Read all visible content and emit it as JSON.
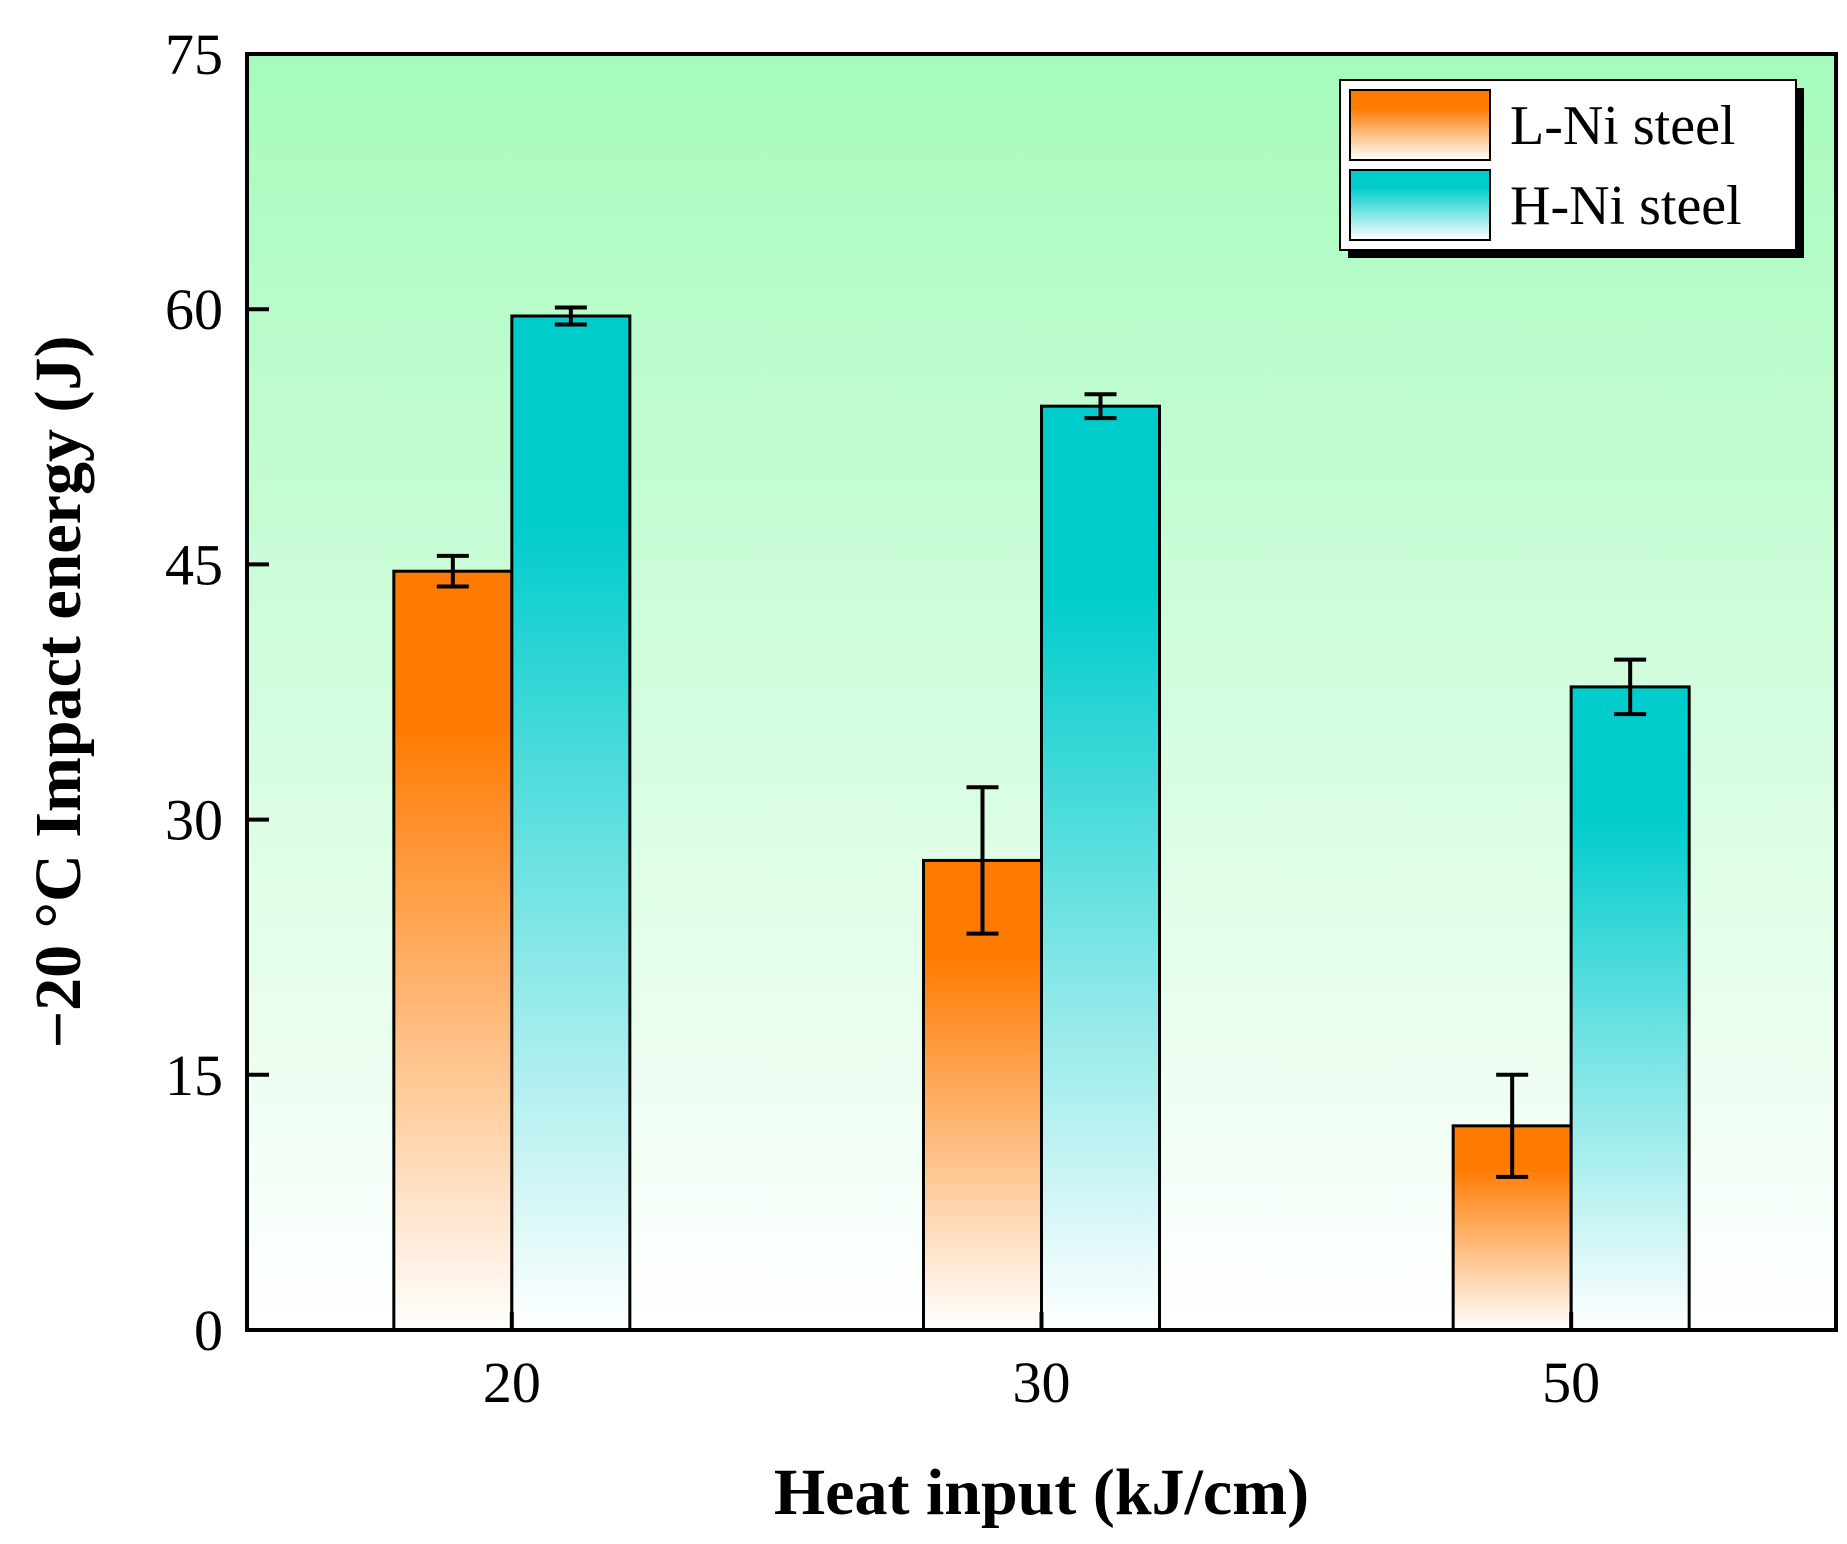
{
  "chart_data": {
    "type": "bar",
    "categories": [
      "20",
      "30",
      "50"
    ],
    "xlabel": "Heat input (kJ/cm)",
    "ylabel": "−20 °C Impact energy (J)",
    "ylim": [
      0,
      75
    ],
    "yticks": [
      0,
      15,
      30,
      45,
      60,
      75
    ],
    "legend_position": "top-right",
    "series": [
      {
        "name": "L-Ni steel",
        "color": "#ff7a00",
        "values": [
          44.6,
          27.6,
          12.0
        ],
        "errors": [
          0.9,
          4.3,
          3.0
        ]
      },
      {
        "name": "H-Ni steel",
        "color": "#00cccc",
        "values": [
          59.6,
          54.3,
          37.8
        ],
        "errors": [
          0.5,
          0.7,
          1.6
        ]
      }
    ],
    "background": {
      "top_color": "#a6fbbc",
      "bottom_color": "#ffffff"
    }
  }
}
